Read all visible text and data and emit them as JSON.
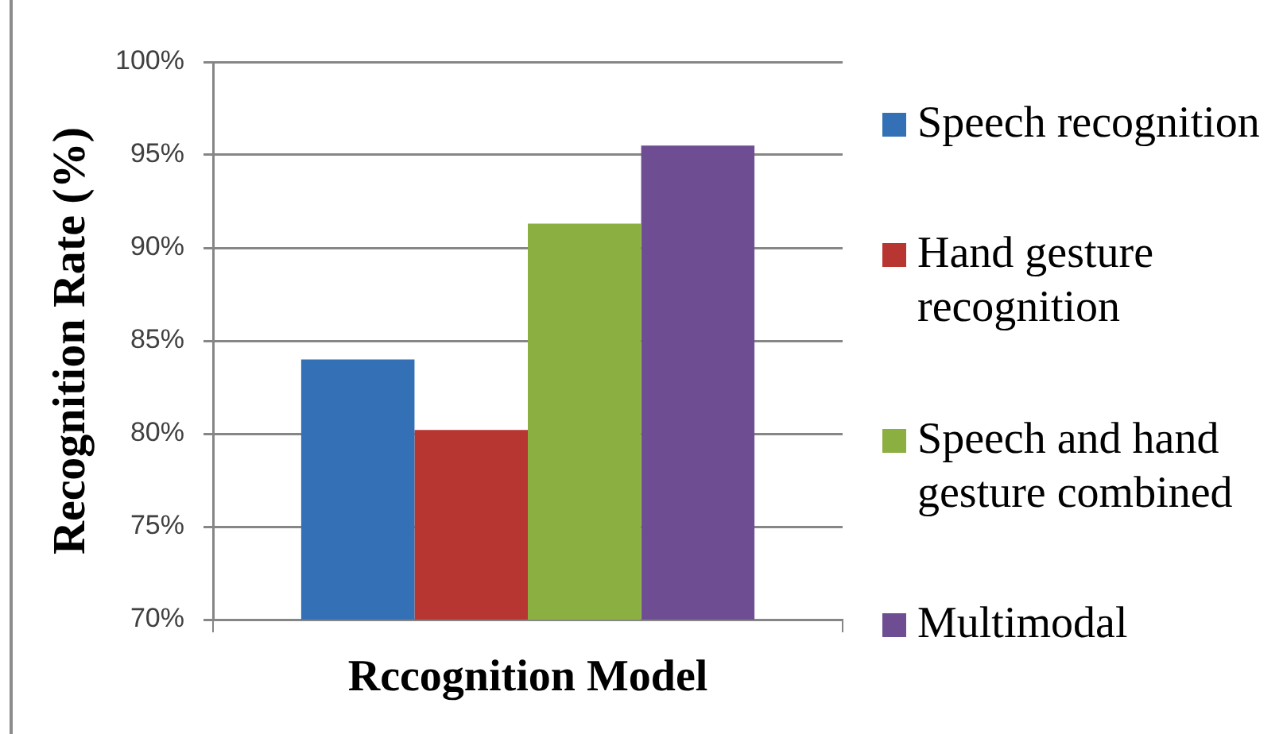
{
  "chart_data": {
    "type": "bar",
    "xlabel": "Rccognition Model",
    "ylabel": "Recognition Rate (%)",
    "categories": [
      null
    ],
    "series": [
      {
        "name": "Speech recognition",
        "color": "#3470b5",
        "values": [
          84
        ]
      },
      {
        "name": "Hand gesture recognition",
        "color": "#b73632",
        "values": [
          80.2
        ]
      },
      {
        "name": "Speech and hand gesture combined",
        "color": "#8baf41",
        "values": [
          91.3
        ]
      },
      {
        "name": "Multimodal",
        "color": "#6e4d93",
        "values": [
          95.5
        ]
      }
    ],
    "ylim": [
      70,
      100
    ],
    "yticks": [
      {
        "value": 70,
        "label": "70%"
      },
      {
        "value": 75,
        "label": "75%"
      },
      {
        "value": 80,
        "label": "80%"
      },
      {
        "value": 85,
        "label": "85%"
      },
      {
        "value": 90,
        "label": "90%"
      },
      {
        "value": 95,
        "label": "95%"
      },
      {
        "value": 100,
        "label": "100%"
      }
    ],
    "grid": "y",
    "legend": "right"
  }
}
